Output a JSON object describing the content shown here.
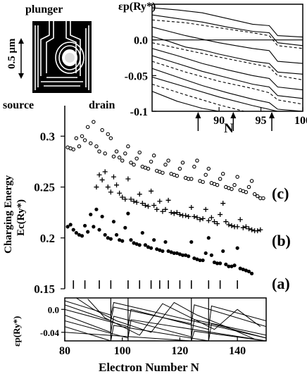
{
  "inset": {
    "plunger_label": "plunger",
    "source_label": "source",
    "drain_label": "drain",
    "scale_label": "0.5 μm"
  },
  "chart_data": [
    {
      "type": "line",
      "panel": "top-right spectrum",
      "ylabel": "εp(Ry*)",
      "xlabel": "N",
      "xlim": [
        82,
        100
      ],
      "ylim": [
        -0.1,
        0.05
      ],
      "xticks": [
        90,
        95,
        100
      ],
      "yticks": [
        0.0,
        -0.05,
        -0.1
      ],
      "ytick_labels": [
        "0.0",
        "-0.05",
        "-0.1"
      ],
      "xtick_labels": [
        "90",
        "95",
        "100"
      ],
      "arrows_at_N": [
        87.5,
        91.7,
        96.3
      ],
      "grid": false,
      "series": [
        {
          "style": "solid",
          "x": [
            82,
            85,
            88,
            91,
            94,
            96,
            97,
            100
          ],
          "y": [
            0.045,
            0.042,
            0.038,
            0.03,
            0.022,
            0.02,
            0.006,
            0.004
          ]
        },
        {
          "style": "solid",
          "x": [
            82,
            85,
            88,
            91,
            94,
            96,
            97,
            100
          ],
          "y": [
            0.035,
            0.03,
            0.025,
            0.018,
            0.012,
            0.01,
            -0.004,
            -0.008
          ]
        },
        {
          "style": "dashed",
          "x": [
            82,
            86,
            90,
            94,
            96,
            97,
            100
          ],
          "y": [
            0.028,
            0.024,
            0.017,
            0.01,
            0.006,
            -0.008,
            -0.012
          ]
        },
        {
          "style": "solid",
          "x": [
            82,
            84,
            86,
            88,
            90,
            92,
            94,
            96,
            97,
            100
          ],
          "y": [
            0.018,
            0.012,
            0.006,
            0.001,
            -0.004,
            -0.008,
            -0.012,
            -0.015,
            -0.03,
            -0.033
          ]
        },
        {
          "style": "solid",
          "x": [
            82,
            84,
            86,
            88,
            90,
            92,
            94,
            96,
            97,
            100
          ],
          "y": [
            0.005,
            -0.002,
            -0.01,
            -0.014,
            -0.02,
            -0.025,
            -0.03,
            -0.033,
            -0.045,
            -0.048
          ]
        },
        {
          "style": "dashed",
          "x": [
            82,
            86,
            90,
            93,
            96,
            97,
            100
          ],
          "y": [
            -0.004,
            -0.014,
            -0.024,
            -0.031,
            -0.038,
            -0.05,
            -0.056
          ]
        },
        {
          "style": "solid",
          "x": [
            82,
            85,
            88,
            91,
            94,
            96,
            97,
            100
          ],
          "y": [
            -0.012,
            -0.022,
            -0.033,
            -0.042,
            -0.05,
            -0.054,
            -0.066,
            -0.07
          ]
        },
        {
          "style": "solid",
          "x": [
            82,
            85,
            88,
            91,
            94,
            96,
            97,
            100
          ],
          "y": [
            -0.022,
            -0.033,
            -0.044,
            -0.053,
            -0.062,
            -0.066,
            -0.078,
            -0.082
          ]
        },
        {
          "style": "dashed",
          "x": [
            82,
            86,
            90,
            94,
            96,
            97,
            100
          ],
          "y": [
            -0.03,
            -0.045,
            -0.058,
            -0.068,
            -0.074,
            -0.084,
            -0.09
          ]
        },
        {
          "style": "solid",
          "x": [
            82,
            85,
            88,
            91,
            94,
            96,
            97,
            100
          ],
          "y": [
            -0.04,
            -0.052,
            -0.064,
            -0.074,
            -0.083,
            -0.088,
            -0.097,
            -0.1
          ]
        },
        {
          "style": "solid",
          "x": [
            82,
            86,
            90,
            94,
            97
          ],
          "y": [
            -0.052,
            -0.066,
            -0.08,
            -0.092,
            -0.1
          ]
        },
        {
          "style": "dashed",
          "x": [
            82,
            86,
            90,
            93
          ],
          "y": [
            -0.062,
            -0.077,
            -0.091,
            -0.1
          ]
        },
        {
          "style": "solid",
          "x": [
            82,
            85,
            88,
            90
          ],
          "y": [
            -0.072,
            -0.086,
            -0.096,
            -0.1
          ]
        }
      ]
    },
    {
      "type": "scatter",
      "panel": "main",
      "ylabel_line1": "Charging Energy",
      "ylabel_line2": "Ec(Ry*)",
      "xlim": [
        80,
        150
      ],
      "ylim": [
        0.15,
        0.33
      ],
      "yticks": [
        0.15,
        0.2,
        0.25,
        0.3
      ],
      "ytick_labels": [
        "0.15",
        "0.2",
        "0.25",
        "0.3"
      ],
      "grid": false,
      "bottom_tick_marks_N": [
        83,
        87,
        92,
        96,
        102,
        106,
        110,
        113,
        116,
        120,
        124,
        130,
        134,
        140
      ],
      "series": [
        {
          "name": "(a)",
          "marker": "filled-dot",
          "x": [
            81,
            82,
            83,
            84,
            85,
            86,
            87,
            88,
            89,
            90,
            91,
            92,
            93,
            94,
            95,
            96,
            97,
            98,
            99,
            100,
            101,
            102,
            103,
            104,
            105,
            106,
            107,
            108,
            109,
            110,
            111,
            112,
            113,
            114,
            115,
            116,
            117,
            118,
            119,
            120,
            121,
            122,
            123,
            124,
            125,
            126,
            127,
            128,
            129,
            130,
            131,
            132,
            133,
            134,
            135,
            136,
            137,
            138,
            139,
            140,
            141,
            142,
            143,
            144,
            145
          ],
          "y": [
            0.211,
            0.213,
            0.208,
            0.205,
            0.203,
            0.202,
            0.212,
            0.206,
            0.223,
            0.211,
            0.228,
            0.208,
            0.221,
            0.203,
            0.2,
            0.199,
            0.216,
            0.203,
            0.198,
            0.197,
            0.21,
            0.224,
            0.198,
            0.195,
            0.194,
            0.193,
            0.205,
            0.193,
            0.191,
            0.19,
            0.198,
            0.189,
            0.188,
            0.187,
            0.196,
            0.187,
            0.186,
            0.185,
            0.185,
            0.184,
            0.183,
            0.183,
            0.182,
            0.196,
            0.18,
            0.179,
            0.178,
            0.178,
            0.185,
            0.2,
            0.183,
            0.176,
            0.175,
            0.175,
            0.187,
            0.174,
            0.172,
            0.172,
            0.173,
            0.19,
            0.17,
            0.169,
            0.168,
            0.167,
            0.165
          ]
        },
        {
          "name": "(b)",
          "marker": "plus",
          "x": [
            91,
            92,
            93,
            94,
            95,
            96,
            97,
            98,
            99,
            100,
            101,
            102,
            103,
            104,
            105,
            106,
            107,
            108,
            109,
            110,
            111,
            112,
            113,
            114,
            115,
            116,
            117,
            118,
            119,
            120,
            121,
            122,
            123,
            124,
            125,
            126,
            127,
            128,
            129,
            130,
            131,
            132,
            133,
            134,
            135,
            136,
            137,
            138,
            139,
            140,
            141,
            142,
            143,
            144,
            145,
            146,
            147,
            148
          ],
          "y": [
            0.25,
            0.262,
            0.257,
            0.265,
            0.25,
            0.245,
            0.26,
            0.252,
            0.244,
            0.24,
            0.238,
            0.258,
            0.238,
            0.236,
            0.235,
            0.243,
            0.234,
            0.232,
            0.231,
            0.246,
            0.232,
            0.228,
            0.236,
            0.226,
            0.228,
            0.237,
            0.225,
            0.224,
            0.225,
            0.223,
            0.222,
            0.222,
            0.221,
            0.23,
            0.221,
            0.22,
            0.218,
            0.219,
            0.228,
            0.217,
            0.22,
            0.216,
            0.214,
            0.223,
            0.234,
            0.216,
            0.213,
            0.212,
            0.211,
            0.211,
            0.218,
            0.21,
            0.211,
            0.209,
            0.208,
            0.207,
            0.207,
            0.208
          ]
        },
        {
          "name": "(c)",
          "marker": "open-circle",
          "x": [
            81,
            82,
            83,
            84,
            85,
            86,
            87,
            88,
            89,
            90,
            91,
            92,
            93,
            94,
            95,
            96,
            97,
            98,
            99,
            100,
            101,
            102,
            103,
            104,
            105,
            106,
            107,
            108,
            109,
            110,
            111,
            112,
            113,
            114,
            115,
            116,
            117,
            118,
            119,
            120,
            121,
            122,
            123,
            124,
            125,
            126,
            127,
            128,
            129,
            130,
            131,
            132,
            133,
            134,
            135,
            136,
            137,
            138,
            139,
            140,
            141,
            142,
            143,
            144,
            145,
            146,
            147,
            148,
            149
          ],
          "y": [
            0.289,
            0.288,
            0.287,
            0.298,
            0.29,
            0.3,
            0.296,
            0.309,
            0.293,
            0.314,
            0.29,
            0.285,
            0.306,
            0.283,
            0.302,
            0.298,
            0.28,
            0.285,
            0.279,
            0.276,
            0.283,
            0.29,
            0.274,
            0.272,
            0.278,
            0.284,
            0.27,
            0.269,
            0.268,
            0.275,
            0.281,
            0.266,
            0.265,
            0.264,
            0.272,
            0.276,
            0.263,
            0.262,
            0.261,
            0.268,
            0.274,
            0.259,
            0.258,
            0.258,
            0.27,
            0.276,
            0.256,
            0.255,
            0.262,
            0.268,
            0.254,
            0.253,
            0.252,
            0.258,
            0.263,
            0.25,
            0.249,
            0.248,
            0.252,
            0.26,
            0.247,
            0.246,
            0.245,
            0.25,
            0.256,
            0.243,
            0.241,
            0.239,
            0.239
          ]
        }
      ]
    },
    {
      "type": "line",
      "panel": "bottom spectrum",
      "ylabel": "εp(Ry*)",
      "xlabel": "Electron Number N",
      "xlim": [
        80,
        150
      ],
      "ylim": [
        -0.055,
        0.02
      ],
      "xticks": [
        80,
        100,
        120,
        140
      ],
      "xtick_labels": [
        "80",
        "100",
        "120",
        "140"
      ],
      "yticks": [
        0.0,
        -0.04
      ],
      "ytick_labels": [
        "0.0",
        "-0.04"
      ],
      "grid": false,
      "jumps_at_N": [
        96,
        102,
        124,
        130
      ],
      "series": [
        {
          "x": [
            80,
            96,
            97,
            150
          ],
          "y": [
            0.015,
            -0.01,
            0.012,
            -0.05
          ]
        },
        {
          "x": [
            80,
            96,
            97,
            124,
            125,
            150
          ],
          "y": [
            0.008,
            -0.02,
            0.004,
            -0.025,
            0.008,
            -0.03
          ]
        },
        {
          "x": [
            80,
            102,
            103,
            130,
            131,
            150
          ],
          "y": [
            0.0,
            -0.03,
            0.0,
            -0.035,
            0.006,
            -0.02
          ]
        },
        {
          "x": [
            80,
            96,
            97,
            124,
            125,
            150
          ],
          "y": [
            -0.01,
            -0.04,
            -0.012,
            -0.048,
            -0.018,
            -0.045
          ]
        },
        {
          "x": [
            80,
            102,
            103,
            150
          ],
          "y": [
            -0.02,
            -0.05,
            -0.018,
            -0.055
          ]
        },
        {
          "x": [
            80,
            96,
            97,
            130,
            131,
            150
          ],
          "y": [
            -0.03,
            -0.055,
            -0.028,
            -0.055,
            -0.025,
            -0.05
          ]
        },
        {
          "x": [
            80,
            124,
            125,
            150
          ],
          "y": [
            -0.04,
            -0.055,
            -0.038,
            -0.055
          ]
        },
        {
          "x": [
            84,
            90,
            98,
            110,
            118,
            126,
            136,
            146
          ],
          "y": [
            0.02,
            0.0,
            -0.02,
            -0.04,
            0.012,
            -0.01,
            -0.03,
            -0.052
          ]
        },
        {
          "x": [
            88,
            94,
            106,
            114,
            120,
            132,
            140,
            148
          ],
          "y": [
            0.018,
            -0.015,
            -0.045,
            0.01,
            -0.005,
            -0.035,
            0.0,
            -0.03
          ]
        }
      ]
    }
  ],
  "panel_labels": {
    "a": "(a)",
    "b": "(b)",
    "c": "(c)"
  }
}
